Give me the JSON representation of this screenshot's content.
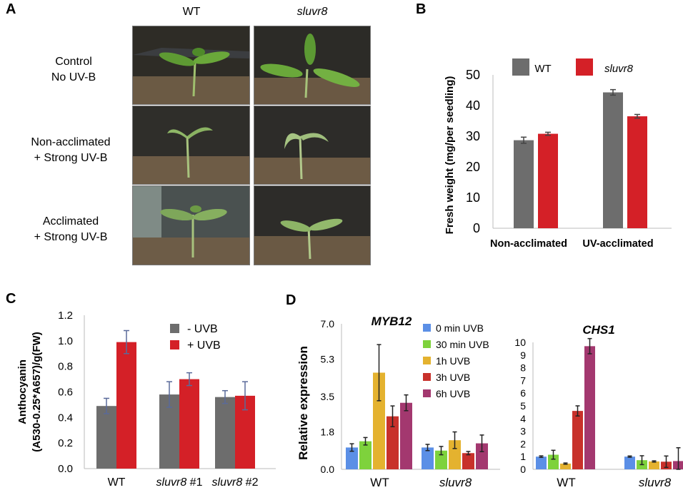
{
  "panelA": {
    "letter": "A",
    "columns": [
      "WT",
      "sluvr8"
    ],
    "rows": [
      {
        "line1": "Control",
        "line2": "No UV-B"
      },
      {
        "line1": "Non-acclimated",
        "line2": "+ Strong UV-B"
      },
      {
        "line1": "Acclimated",
        "line2": "+ Strong UV-B"
      }
    ]
  },
  "panelB": {
    "letter": "B"
  },
  "panelC": {
    "letter": "C"
  },
  "panelD": {
    "letter": "D",
    "ylabel": "Relative expression"
  },
  "colors": {
    "wt": "#6d6d6d",
    "sluvr8": "#d42027",
    "t0": "#5b8fe6",
    "t30": "#7ed23c",
    "t1h": "#e4b22f",
    "t3h": "#c8312b",
    "t6h": "#a3386f"
  },
  "chart_data": [
    {
      "id": "B",
      "type": "bar",
      "title": "",
      "xlabel": "",
      "ylabel": "Fresh weight (mg/per seedling)",
      "ylim": [
        0,
        50
      ],
      "yticks": [
        0,
        10,
        20,
        30,
        40,
        50
      ],
      "categories": [
        "Non-acclimated",
        "UV-acclimated"
      ],
      "series": [
        {
          "name": "WT",
          "values": [
            28.7,
            44.3
          ],
          "errors": [
            1.0,
            0.9
          ]
        },
        {
          "name": "sluvr8",
          "values": [
            30.8,
            36.5
          ],
          "errors": [
            0.5,
            0.6
          ]
        }
      ],
      "legend": "top",
      "grid": false
    },
    {
      "id": "C",
      "type": "bar",
      "title": "",
      "xlabel": "",
      "ylabel": [
        "Anthocyanin",
        "(A530-0.25*A657)/g(FW)"
      ],
      "ylim": [
        0,
        1.2
      ],
      "yticks": [
        "0.0",
        "0.2",
        "0.4",
        "0.6",
        "0.8",
        "1.0",
        "1.2"
      ],
      "categories": [
        "WT",
        "sluvr8 #1",
        "sluvr8 #2"
      ],
      "series": [
        {
          "name": "- UVB",
          "values": [
            0.49,
            0.58,
            0.56
          ],
          "errors": [
            0.06,
            0.1,
            0.05
          ]
        },
        {
          "name": "+ UVB",
          "values": [
            0.99,
            0.7,
            0.57
          ],
          "errors": [
            0.09,
            0.05,
            0.11
          ]
        }
      ],
      "legend": "top-right",
      "grid": false
    },
    {
      "id": "MYB12",
      "type": "bar",
      "title": "MYB12",
      "xlabel": "",
      "ylabel": "Relative expression",
      "ylim": [
        0,
        7.0
      ],
      "yticks": [
        "0.0",
        "1.8",
        "3.5",
        "5.3",
        "7.0"
      ],
      "categories": [
        "WT",
        "sluvr8"
      ],
      "series": [
        {
          "name": "0 min UVB",
          "values": [
            1.05,
            1.05
          ],
          "errors": [
            0.18,
            0.15
          ]
        },
        {
          "name": "30 min UVB",
          "values": [
            1.35,
            0.9
          ],
          "errors": [
            0.18,
            0.2
          ]
        },
        {
          "name": "1h UVB",
          "values": [
            4.65,
            1.4
          ],
          "errors": [
            1.35,
            0.4
          ]
        },
        {
          "name": "3h UVB",
          "values": [
            2.55,
            0.78
          ],
          "errors": [
            0.5,
            0.08
          ]
        },
        {
          "name": "6h UVB",
          "values": [
            3.2,
            1.25
          ],
          "errors": [
            0.38,
            0.4
          ]
        }
      ],
      "legend": "top-right",
      "grid": false
    },
    {
      "id": "CHS1",
      "type": "bar",
      "title": "CHS1",
      "xlabel": "",
      "ylabel": "",
      "ylim": [
        0,
        10
      ],
      "yticks": [
        "0",
        "1",
        "2",
        "3",
        "4",
        "5",
        "6",
        "7",
        "8",
        "9",
        "10"
      ],
      "categories": [
        "WT",
        "sluvr8"
      ],
      "series": [
        {
          "name": "0 min UVB",
          "values": [
            1.0,
            1.0
          ],
          "errors": [
            0.06,
            0.05
          ]
        },
        {
          "name": "30 min UVB",
          "values": [
            1.15,
            0.72
          ],
          "errors": [
            0.35,
            0.35
          ]
        },
        {
          "name": "1h UVB",
          "values": [
            0.45,
            0.62
          ],
          "errors": [
            0.05,
            0.05
          ]
        },
        {
          "name": "3h UVB",
          "values": [
            4.6,
            0.6
          ],
          "errors": [
            0.4,
            0.45
          ]
        },
        {
          "name": "6h UVB",
          "values": [
            9.7,
            0.65
          ],
          "errors": [
            0.6,
            1.05
          ]
        }
      ],
      "grid": false
    }
  ]
}
